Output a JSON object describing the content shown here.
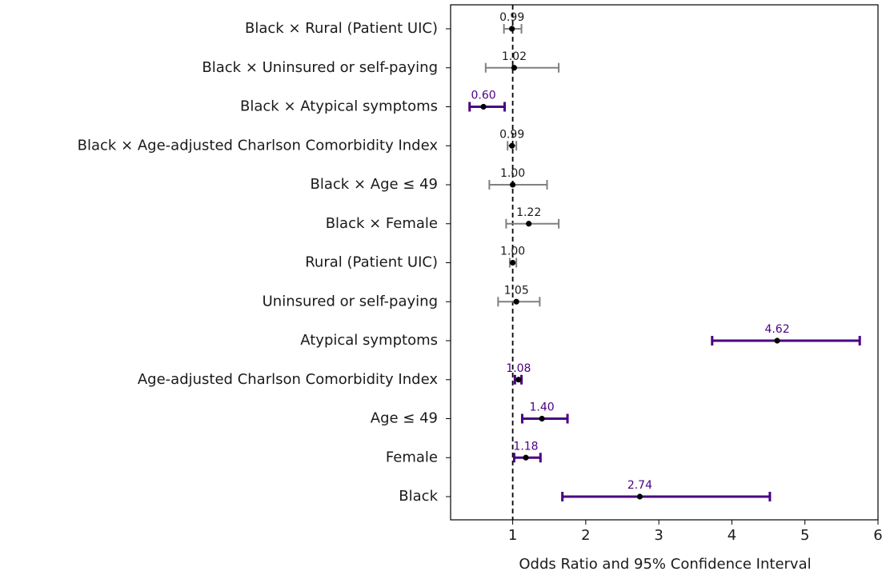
{
  "chart_data": {
    "type": "forest",
    "xlabel": "Odds Ratio and 95% Confidence Interval",
    "categories": [
      "Black × Rural (Patient UIC)",
      "Black × Uninsured or self-paying",
      "Black × Atypical symptoms",
      "Black × Age-adjusted Charlson Comorbidity Index",
      "Black × Age ≤ 49",
      "Black × Female",
      "Rural (Patient UIC)",
      "Uninsured or self-paying",
      "Atypical symptoms",
      "Age-adjusted Charlson Comorbidity Index",
      "Age ≤ 49",
      "Female",
      "Black"
    ],
    "values": [
      0.99,
      1.02,
      0.6,
      0.99,
      1.0,
      1.22,
      1.0,
      1.05,
      4.62,
      1.08,
      1.4,
      1.18,
      2.74
    ],
    "value_labels": [
      "0.99",
      "1.02",
      "0.60",
      "0.99",
      "1.00",
      "1.22",
      "1.00",
      "1.05",
      "4.62",
      "1.08",
      "1.40",
      "1.18",
      "2.74"
    ],
    "lower": [
      0.88,
      0.63,
      0.41,
      0.93,
      0.68,
      0.91,
      0.96,
      0.8,
      3.73,
      1.03,
      1.13,
      1.02,
      1.68
    ],
    "upper": [
      1.12,
      1.63,
      0.89,
      1.05,
      1.47,
      1.63,
      1.05,
      1.37,
      5.75,
      1.12,
      1.75,
      1.38,
      4.52
    ],
    "colors": [
      "#808080",
      "#808080",
      "#4b0082",
      "#808080",
      "#808080",
      "#808080",
      "#808080",
      "#808080",
      "#4b0082",
      "#4b0082",
      "#4b0082",
      "#4b0082",
      "#4b0082"
    ],
    "label_colors": [
      "#1a1a1a",
      "#1a1a1a",
      "#4b0082",
      "#1a1a1a",
      "#1a1a1a",
      "#1a1a1a",
      "#1a1a1a",
      "#1a1a1a",
      "#4b0082",
      "#4b0082",
      "#4b0082",
      "#4b0082",
      "#4b0082"
    ],
    "point_color": "#000000",
    "reference_line": 1,
    "xlim": [
      0.15,
      6.0
    ],
    "xticks": [
      1,
      2,
      3,
      4,
      5,
      6
    ]
  }
}
